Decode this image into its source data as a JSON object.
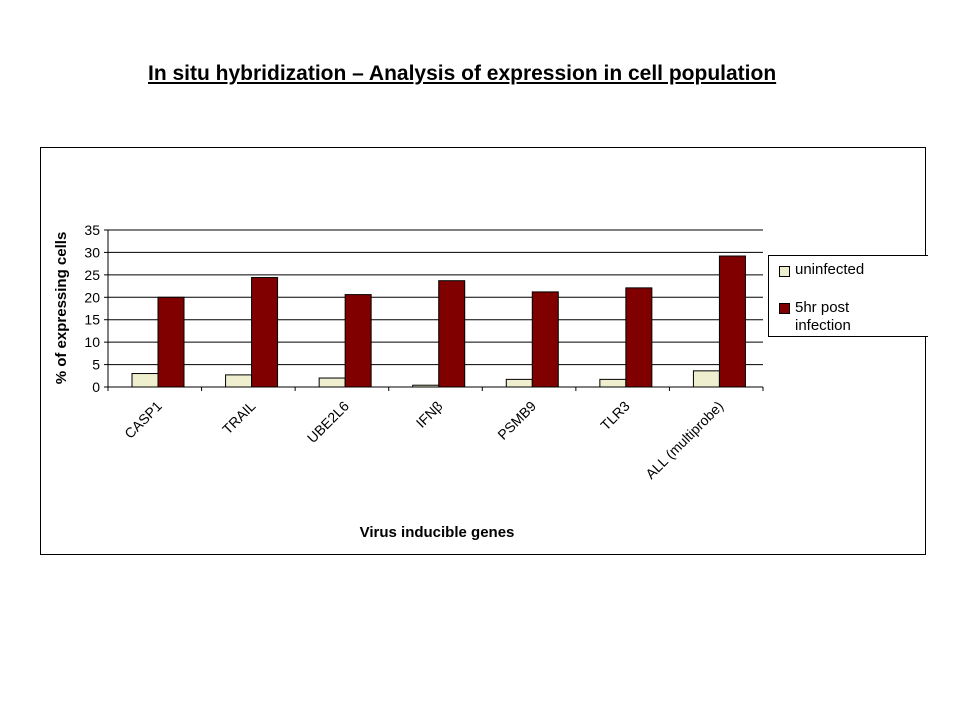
{
  "title": "In situ hybridization – Analysis of expression in cell population",
  "colors": {
    "uninfected": "#efefcf",
    "infected": "#800000",
    "gridline": "#000000"
  },
  "chart_data": {
    "type": "bar",
    "xlabel": "Virus inducible genes",
    "ylabel": "% of expressing cells",
    "ylim": [
      0,
      35
    ],
    "yticks": [
      0,
      5,
      10,
      15,
      20,
      25,
      30,
      35
    ],
    "grid": true,
    "legend_position": "right",
    "categories": [
      "CASP1",
      "TRAIL",
      "UBE2L6",
      "IFNβ",
      "PSMB9",
      "TLR3",
      "ALL (multiprobe)"
    ],
    "series": [
      {
        "name": "uninfected",
        "values": [
          3.0,
          2.7,
          2.0,
          0.4,
          1.7,
          1.7,
          3.6
        ]
      },
      {
        "name": "5hr post infection",
        "values": [
          20.0,
          24.4,
          20.6,
          23.7,
          21.2,
          22.1,
          29.2
        ]
      }
    ]
  }
}
